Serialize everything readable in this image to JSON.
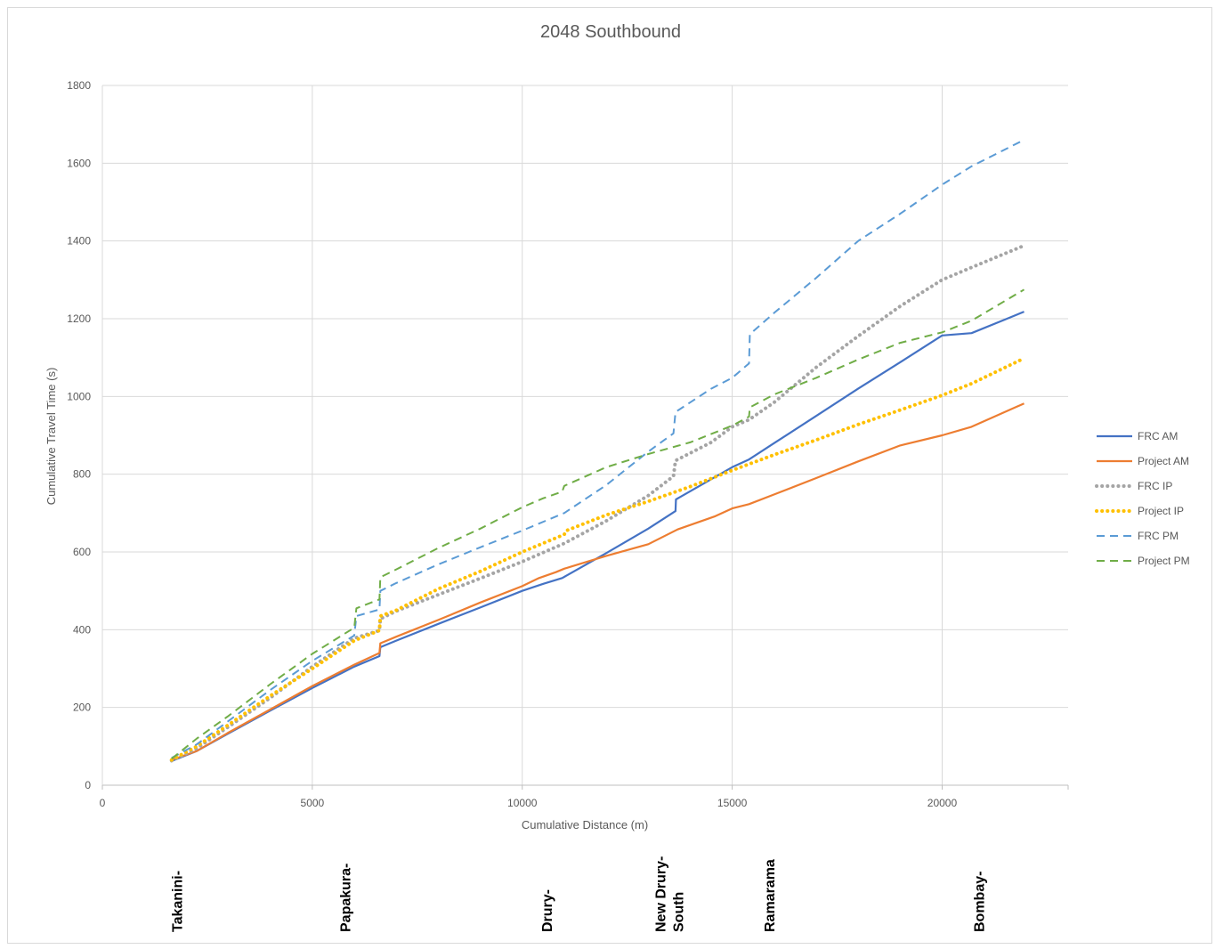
{
  "chart_data": {
    "type": "line",
    "title": "2048 Southbound",
    "xlabel": "Cumulative Distance (m)",
    "ylabel": "Cumulative Travel Time (s)",
    "xlim": [
      0,
      23000
    ],
    "ylim": [
      0,
      1800
    ],
    "x_ticks": [
      0,
      5000,
      10000,
      15000,
      20000
    ],
    "y_ticks": [
      0,
      200,
      400,
      600,
      800,
      1000,
      1200,
      1400,
      1600,
      1800
    ],
    "grid": true,
    "legend_position": "right",
    "series": [
      {
        "name": "FRC AM",
        "color": "#4472C4",
        "dash": "solid",
        "points": [
          [
            1650,
            62
          ],
          [
            2250,
            88
          ],
          [
            3000,
            133
          ],
          [
            4000,
            192
          ],
          [
            5000,
            250
          ],
          [
            6000,
            305
          ],
          [
            6600,
            332
          ],
          [
            6620,
            355
          ],
          [
            7000,
            372
          ],
          [
            8000,
            415
          ],
          [
            9000,
            457
          ],
          [
            10000,
            500
          ],
          [
            10500,
            518
          ],
          [
            10950,
            533
          ],
          [
            12000,
            597
          ],
          [
            13000,
            660
          ],
          [
            13650,
            705
          ],
          [
            13660,
            735
          ],
          [
            14500,
            787
          ],
          [
            15000,
            818
          ],
          [
            15400,
            838
          ],
          [
            16000,
            880
          ],
          [
            17000,
            950
          ],
          [
            18000,
            1020
          ],
          [
            19000,
            1088
          ],
          [
            20000,
            1157
          ],
          [
            20700,
            1163
          ],
          [
            21500,
            1198
          ],
          [
            21950,
            1218
          ]
        ]
      },
      {
        "name": "Project AM",
        "color": "#ED7D31",
        "dash": "solid",
        "points": [
          [
            1650,
            65
          ],
          [
            2250,
            88
          ],
          [
            3000,
            135
          ],
          [
            4000,
            195
          ],
          [
            5000,
            255
          ],
          [
            6000,
            310
          ],
          [
            6600,
            340
          ],
          [
            6620,
            365
          ],
          [
            7000,
            382
          ],
          [
            8000,
            425
          ],
          [
            9000,
            470
          ],
          [
            10000,
            512
          ],
          [
            10400,
            533
          ],
          [
            10800,
            548
          ],
          [
            11000,
            557
          ],
          [
            12000,
            590
          ],
          [
            13000,
            620
          ],
          [
            13700,
            658
          ],
          [
            14600,
            692
          ],
          [
            15000,
            712
          ],
          [
            15400,
            723
          ],
          [
            16000,
            748
          ],
          [
            17000,
            790
          ],
          [
            18000,
            833
          ],
          [
            19000,
            874
          ],
          [
            20000,
            900
          ],
          [
            20700,
            922
          ],
          [
            21950,
            982
          ]
        ]
      },
      {
        "name": "FRC IP",
        "color": "#A5A5A5",
        "dash": "dot",
        "points": [
          [
            1650,
            63
          ],
          [
            2250,
            95
          ],
          [
            3000,
            150
          ],
          [
            4000,
            225
          ],
          [
            5000,
            305
          ],
          [
            6000,
            378
          ],
          [
            6600,
            398
          ],
          [
            6620,
            428
          ],
          [
            7000,
            448
          ],
          [
            8000,
            490
          ],
          [
            9000,
            532
          ],
          [
            10000,
            575
          ],
          [
            11000,
            622
          ],
          [
            12000,
            680
          ],
          [
            13000,
            745
          ],
          [
            13600,
            795
          ],
          [
            13650,
            835
          ],
          [
            14500,
            882
          ],
          [
            15000,
            922
          ],
          [
            15400,
            940
          ],
          [
            16000,
            985
          ],
          [
            17000,
            1075
          ],
          [
            18000,
            1155
          ],
          [
            19000,
            1232
          ],
          [
            20000,
            1300
          ],
          [
            20700,
            1332
          ],
          [
            21950,
            1388
          ]
        ]
      },
      {
        "name": "Project IP",
        "color": "#FFC000",
        "dash": "dot",
        "points": [
          [
            1650,
            65
          ],
          [
            2250,
            100
          ],
          [
            3000,
            155
          ],
          [
            4000,
            230
          ],
          [
            5000,
            300
          ],
          [
            6000,
            372
          ],
          [
            6600,
            398
          ],
          [
            6620,
            435
          ],
          [
            7000,
            450
          ],
          [
            8000,
            505
          ],
          [
            9000,
            550
          ],
          [
            10000,
            600
          ],
          [
            11000,
            645
          ],
          [
            11050,
            655
          ],
          [
            12000,
            695
          ],
          [
            13000,
            730
          ],
          [
            14000,
            768
          ],
          [
            15000,
            810
          ],
          [
            16000,
            850
          ],
          [
            17000,
            888
          ],
          [
            18000,
            928
          ],
          [
            19000,
            965
          ],
          [
            20000,
            1003
          ],
          [
            20700,
            1033
          ],
          [
            21950,
            1098
          ]
        ]
      },
      {
        "name": "FRC PM",
        "color": "#5B9BD5",
        "dash": "dash",
        "points": [
          [
            1650,
            70
          ],
          [
            2250,
            105
          ],
          [
            3000,
            165
          ],
          [
            4000,
            245
          ],
          [
            5000,
            320
          ],
          [
            6000,
            385
          ],
          [
            6050,
            435
          ],
          [
            6600,
            452
          ],
          [
            6620,
            500
          ],
          [
            7000,
            520
          ],
          [
            8000,
            568
          ],
          [
            9000,
            612
          ],
          [
            10000,
            655
          ],
          [
            11000,
            700
          ],
          [
            12000,
            772
          ],
          [
            13000,
            858
          ],
          [
            13600,
            905
          ],
          [
            13650,
            960
          ],
          [
            14500,
            1020
          ],
          [
            15000,
            1048
          ],
          [
            15400,
            1085
          ],
          [
            15420,
            1160
          ],
          [
            16000,
            1215
          ],
          [
            17000,
            1305
          ],
          [
            18000,
            1400
          ],
          [
            19000,
            1470
          ],
          [
            20000,
            1545
          ],
          [
            20700,
            1592
          ],
          [
            21950,
            1660
          ]
        ]
      },
      {
        "name": "Project PM",
        "color": "#70AD47",
        "dash": "dash",
        "points": [
          [
            1650,
            68
          ],
          [
            2250,
            120
          ],
          [
            3000,
            178
          ],
          [
            4000,
            260
          ],
          [
            5000,
            338
          ],
          [
            6000,
            405
          ],
          [
            6050,
            455
          ],
          [
            6600,
            478
          ],
          [
            6620,
            535
          ],
          [
            7000,
            555
          ],
          [
            8000,
            610
          ],
          [
            9000,
            660
          ],
          [
            10000,
            715
          ],
          [
            10500,
            738
          ],
          [
            10950,
            755
          ],
          [
            11000,
            770
          ],
          [
            12000,
            818
          ],
          [
            13000,
            852
          ],
          [
            14000,
            882
          ],
          [
            15000,
            925
          ],
          [
            15400,
            948
          ],
          [
            15420,
            972
          ],
          [
            16000,
            1005
          ],
          [
            17000,
            1048
          ],
          [
            18000,
            1095
          ],
          [
            19000,
            1138
          ],
          [
            20000,
            1165
          ],
          [
            20700,
            1195
          ],
          [
            21950,
            1275
          ]
        ]
      }
    ],
    "location_labels": [
      {
        "text": "Takanini-",
        "x": 1900
      },
      {
        "text": "Papakura-",
        "x": 5900
      },
      {
        "text": "Drury-",
        "x": 10700
      },
      {
        "text": "New Drury-South",
        "x": 13600
      },
      {
        "text": "Ramarama",
        "x": 16000
      },
      {
        "text": "Bombay-",
        "x": 21000
      }
    ]
  }
}
